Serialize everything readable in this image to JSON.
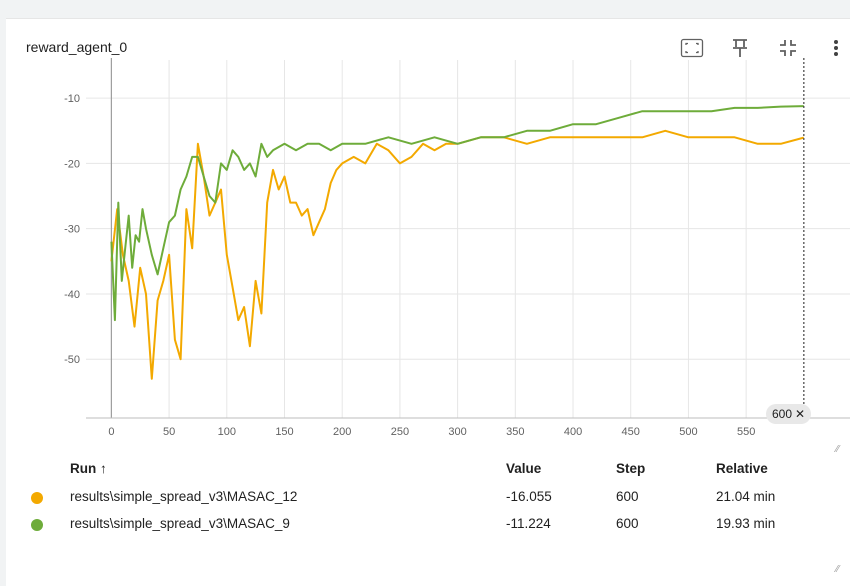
{
  "card": {
    "title": "reward_agent_0"
  },
  "toolbar": [
    {
      "name": "fullscreen-icon"
    },
    {
      "name": "pin-icon"
    },
    {
      "name": "fit-domain-icon"
    },
    {
      "name": "more-vert-icon"
    }
  ],
  "colors": {
    "masac12": "#f3a900",
    "masac9": "#6eac3a",
    "grid": "#e6e6e6"
  },
  "chart_data": {
    "type": "line",
    "title": "reward_agent_0",
    "xlabel": "",
    "ylabel": "",
    "x_ticks": [
      "0",
      "50",
      "100",
      "150",
      "200",
      "250",
      "300",
      "350",
      "400",
      "450",
      "500",
      "550"
    ],
    "y_ticks": [
      "-10",
      "-20",
      "-30",
      "-40",
      "-50"
    ],
    "xlim": [
      -22,
      640
    ],
    "ylim": [
      -59,
      -6
    ],
    "grid": true,
    "series": [
      {
        "name": "results\\simple_spread_v3\\MASAC_12",
        "color": "#f3a900",
        "x": [
          0,
          5,
          10,
          15,
          20,
          25,
          30,
          35,
          40,
          45,
          50,
          55,
          60,
          65,
          70,
          75,
          80,
          85,
          90,
          95,
          100,
          105,
          110,
          115,
          120,
          125,
          130,
          135,
          140,
          145,
          150,
          155,
          160,
          165,
          170,
          175,
          180,
          185,
          190,
          195,
          200,
          210,
          220,
          230,
          240,
          250,
          260,
          270,
          280,
          290,
          300,
          320,
          340,
          360,
          380,
          400,
          420,
          440,
          460,
          480,
          500,
          520,
          540,
          560,
          580,
          600
        ],
        "y": [
          -35,
          -27,
          -34,
          -38,
          -45,
          -36,
          -40,
          -53,
          -41,
          -38,
          -34,
          -47,
          -50,
          -27,
          -33,
          -17,
          -22,
          -28,
          -26,
          -24,
          -34,
          -39,
          -44,
          -42,
          -48,
          -38,
          -43,
          -26,
          -21,
          -24,
          -22,
          -26,
          -26,
          -28,
          -27,
          -31,
          -29,
          -27,
          -23,
          -21,
          -20,
          -19,
          -20,
          -17,
          -18,
          -20,
          -19,
          -17,
          -18,
          -17,
          -17,
          -16,
          -16,
          -17,
          -16,
          -16,
          -16,
          -16,
          -16,
          -15,
          -16,
          -16,
          -16,
          -17,
          -17,
          -16.055
        ]
      },
      {
        "name": "results\\simple_spread_v3\\MASAC_9",
        "color": "#6eac3a",
        "x": [
          0,
          3,
          6,
          9,
          12,
          15,
          18,
          21,
          24,
          27,
          30,
          35,
          40,
          45,
          50,
          55,
          60,
          65,
          70,
          75,
          80,
          85,
          90,
          95,
          100,
          105,
          110,
          115,
          120,
          125,
          130,
          135,
          140,
          150,
          160,
          170,
          180,
          190,
          200,
          220,
          240,
          260,
          280,
          300,
          320,
          340,
          360,
          380,
          400,
          420,
          440,
          460,
          480,
          500,
          520,
          540,
          560,
          580,
          600
        ],
        "y": [
          -32,
          -44,
          -26,
          -38,
          -33,
          -28,
          -36,
          -31,
          -32,
          -27,
          -30,
          -34,
          -37,
          -33,
          -29,
          -28,
          -24,
          -22,
          -19,
          -19,
          -22,
          -25,
          -26,
          -20,
          -21,
          -18,
          -19,
          -21,
          -20,
          -22,
          -17,
          -19,
          -18,
          -17,
          -18,
          -17,
          -17,
          -18,
          -17,
          -17,
          -16,
          -17,
          -16,
          -17,
          -16,
          -16,
          -15,
          -15,
          -14,
          -14,
          -13,
          -12,
          -12,
          -12,
          -12,
          -11.5,
          -11.5,
          -11.3,
          -11.224
        ]
      }
    ],
    "cursor_step": "600",
    "legend": {
      "headers": {
        "run": "Run ↑",
        "value": "Value",
        "step": "Step",
        "relative": "Relative"
      },
      "rows": [
        {
          "run": "results\\simple_spread_v3\\MASAC_12",
          "value": "-16.055",
          "step": "600",
          "relative": "21.04 min"
        },
        {
          "run": "results\\simple_spread_v3\\MASAC_9",
          "value": "-11.224",
          "step": "600",
          "relative": "19.93 min"
        }
      ]
    }
  }
}
